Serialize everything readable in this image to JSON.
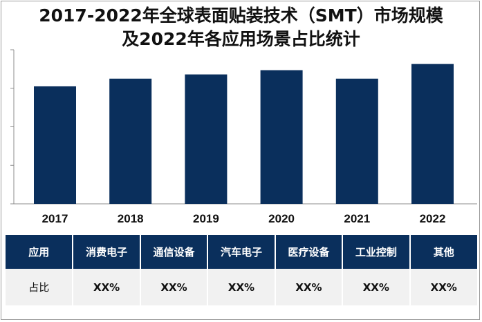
{
  "chart_data": {
    "type": "bar",
    "title": "2017-2022年全球表面贴装技术（SMT）市场规模及2022年各应用场景占比统计",
    "categories": [
      "2017",
      "2018",
      "2019",
      "2020",
      "2021",
      "2022"
    ],
    "values": [
      3.05,
      3.25,
      3.36,
      3.47,
      3.25,
      3.63
    ],
    "ylim": [
      0,
      4
    ],
    "y_ticks": 5,
    "grid": false,
    "bar_color": "#0a2f5c"
  },
  "table": {
    "headers": [
      "应用",
      "消费电子",
      "通信设备",
      "汽车电子",
      "医疗设备",
      "工业控制",
      "其他"
    ],
    "row": [
      "占比",
      "XX%",
      "XX%",
      "XX%",
      "XX%",
      "XX%",
      "XX%"
    ]
  }
}
